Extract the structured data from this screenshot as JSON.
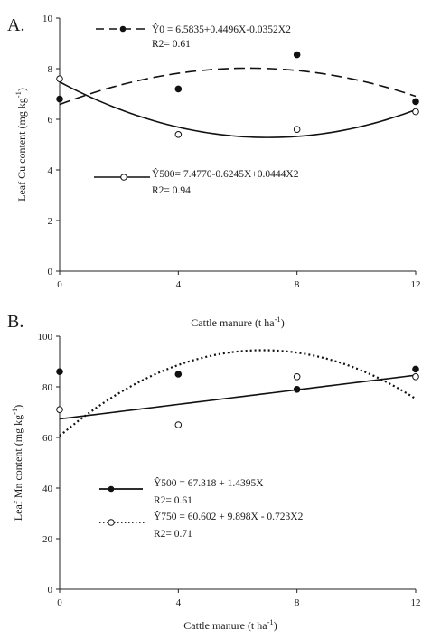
{
  "chart_data": [
    {
      "type": "scatter",
      "panel": "A.",
      "xlabel": "Cattle manure (t ha-1)",
      "ylabel": "Leaf Cu content (mg kg-1)",
      "xlim": [
        0,
        12
      ],
      "ylim": [
        0,
        10
      ],
      "x_ticks": [
        "0",
        "4",
        "8",
        "12"
      ],
      "y_ticks": [
        "0",
        "2",
        "4",
        "6",
        "8",
        "10"
      ],
      "grid": false,
      "series": [
        {
          "marker": "filled-circle",
          "line_style": "dashed",
          "color": "#111111",
          "x": [
            0,
            4,
            8,
            12
          ],
          "y": [
            6.8,
            7.2,
            8.55,
            6.7
          ],
          "fit": {
            "a": 6.5835,
            "b": 0.4496,
            "c": -0.0352
          },
          "equation": "Ŷ0 = 6.5835+0.4496X-0.0352X2",
          "r2": "R2= 0.61"
        },
        {
          "marker": "open-circle",
          "line_style": "solid",
          "color": "#111111",
          "x": [
            0,
            4,
            8,
            12
          ],
          "y": [
            7.6,
            5.4,
            5.6,
            6.3
          ],
          "fit": {
            "a": 7.477,
            "b": -0.6245,
            "c": 0.0444
          },
          "equation": "Ŷ500= 7.4770-0.6245X+0.0444X2",
          "r2": "R2= 0.94"
        }
      ]
    },
    {
      "type": "scatter",
      "panel": "B.",
      "xlabel": "Cattle manure (t ha-1)",
      "ylabel": "Leaf Mn content (mg kg-1)",
      "xlim": [
        0,
        12
      ],
      "ylim": [
        0,
        100
      ],
      "x_ticks": [
        "0",
        "4",
        "8",
        "12"
      ],
      "y_ticks": [
        "0",
        "20",
        "40",
        "60",
        "80",
        "100"
      ],
      "grid": false,
      "series": [
        {
          "marker": "filled-circle",
          "line_style": "solid",
          "color": "#111111",
          "x": [
            0,
            4,
            8,
            12
          ],
          "y": [
            86,
            85,
            79,
            87
          ],
          "fit": {
            "a": 67.318,
            "b": 1.4395,
            "c": 0
          },
          "equation": "Ŷ500 = 67.318 + 1.4395X",
          "r2": "R2= 0.61"
        },
        {
          "marker": "open-circle",
          "line_style": "dotted",
          "color": "#111111",
          "x": [
            0,
            4,
            8,
            12
          ],
          "y": [
            71,
            65,
            84,
            84
          ],
          "fit": {
            "a": 60.602,
            "b": 9.898,
            "c": -0.723
          },
          "equation": "Ŷ750 = 60.602 + 9.898X - 0.723X2",
          "r2": "R2= 0.71"
        }
      ]
    }
  ]
}
